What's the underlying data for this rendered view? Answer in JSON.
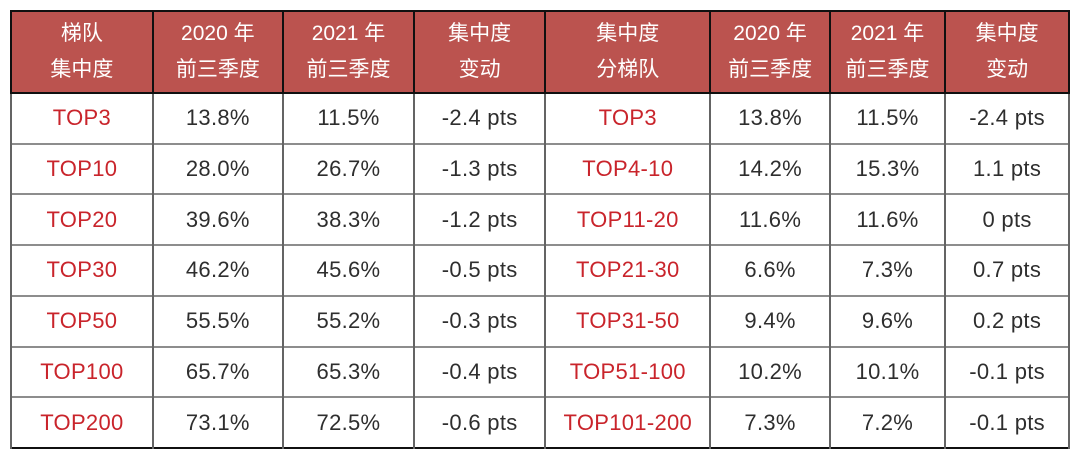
{
  "colors": {
    "header_bg": "#bb534f",
    "header_text": "#ffffff",
    "tier_label_red": "#c9242b",
    "body_text": "#2e2e2e"
  },
  "chart_data": {
    "type": "table",
    "title": "",
    "columns": [
      [
        "梯队",
        "集中度"
      ],
      [
        "2020 年",
        "前三季度"
      ],
      [
        "2021 年",
        "前三季度"
      ],
      [
        "集中度",
        "变动"
      ],
      [
        "集中度",
        "分梯队"
      ],
      [
        "2020 年",
        "前三季度"
      ],
      [
        "2021 年",
        "前三季度"
      ],
      [
        "集中度",
        "变动"
      ]
    ],
    "rows": [
      [
        "TOP3",
        "13.8%",
        "11.5%",
        "-2.4 pts",
        "TOP3",
        "13.8%",
        "11.5%",
        "-2.4 pts"
      ],
      [
        "TOP10",
        "28.0%",
        "26.7%",
        "-1.3 pts",
        "TOP4-10",
        "14.2%",
        "15.3%",
        "1.1 pts"
      ],
      [
        "TOP20",
        "39.6%",
        "38.3%",
        "-1.2 pts",
        "TOP11-20",
        "11.6%",
        "11.6%",
        "0 pts"
      ],
      [
        "TOP30",
        "46.2%",
        "45.6%",
        "-0.5 pts",
        "TOP21-30",
        "6.6%",
        "7.3%",
        "0.7 pts"
      ],
      [
        "TOP50",
        "55.5%",
        "55.2%",
        "-0.3 pts",
        "TOP31-50",
        "9.4%",
        "9.6%",
        "0.2 pts"
      ],
      [
        "TOP100",
        "65.7%",
        "65.3%",
        "-0.4 pts",
        "TOP51-100",
        "10.2%",
        "10.1%",
        "-0.1 pts"
      ],
      [
        "TOP200",
        "73.1%",
        "72.5%",
        "-0.6 pts",
        "TOP101-200",
        "7.3%",
        "7.2%",
        "-0.1 pts"
      ]
    ]
  }
}
